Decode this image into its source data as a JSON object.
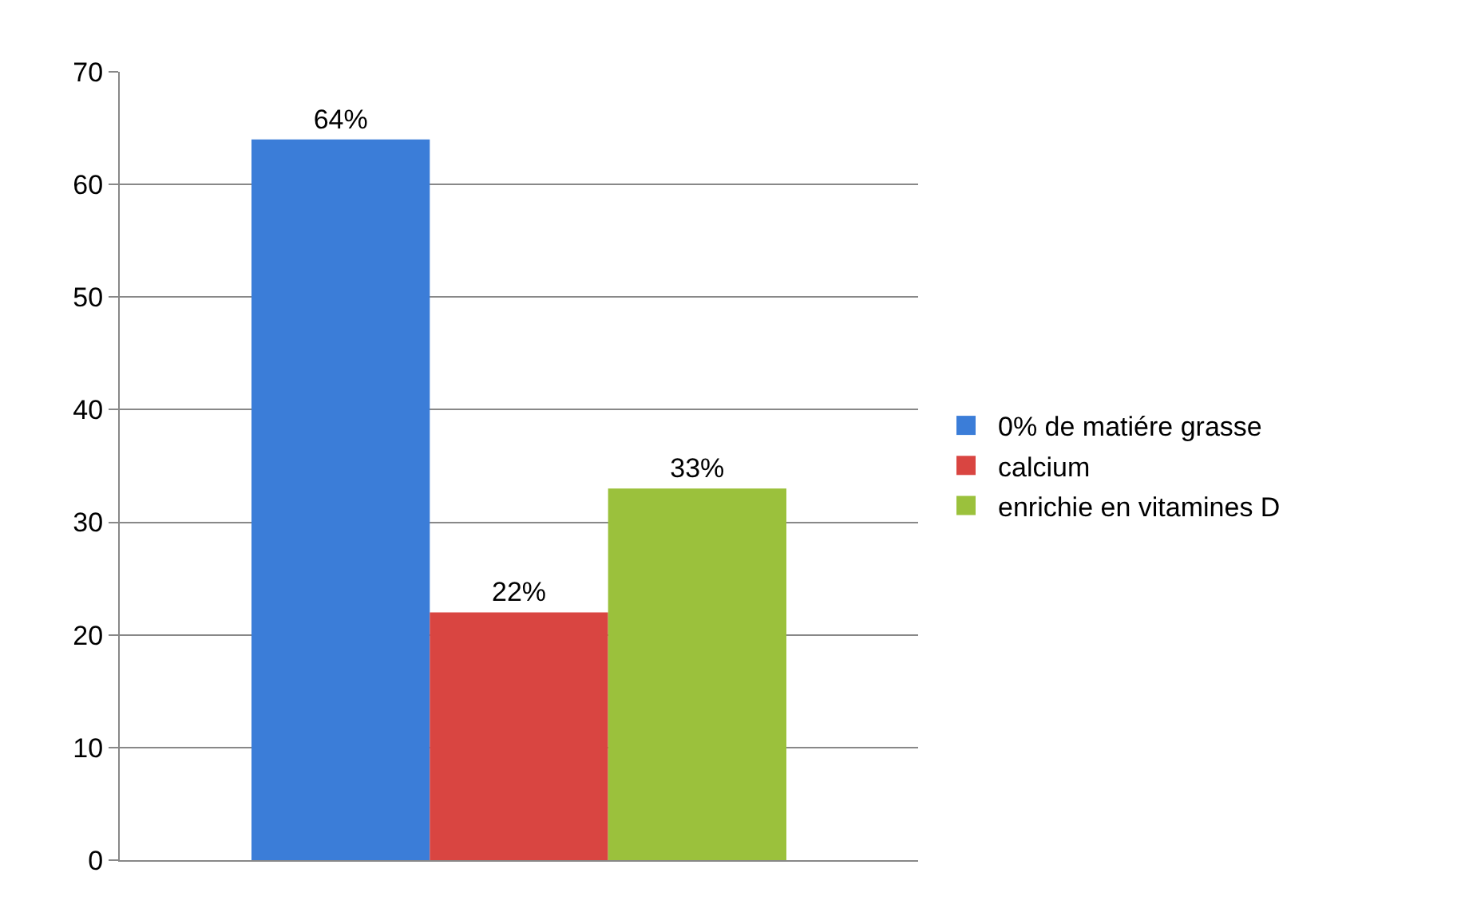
{
  "chart_data": {
    "type": "bar",
    "categories": [
      null
    ],
    "series": [
      {
        "name": "0% de matiére grasse",
        "color": "#3b7dd8",
        "values": [
          64
        ],
        "value_labels": [
          "64%"
        ]
      },
      {
        "name": "calcium",
        "color": "#d94541",
        "values": [
          22
        ],
        "value_labels": [
          "22%"
        ]
      },
      {
        "name": "enrichie en vitamines D",
        "color": "#9bc13c",
        "values": [
          33
        ],
        "value_labels": [
          "33%"
        ]
      }
    ],
    "ylim": [
      0,
      70
    ],
    "yticks": [
      0,
      10,
      20,
      30,
      40,
      50,
      60,
      70
    ],
    "grid": "y",
    "legend": "right"
  }
}
